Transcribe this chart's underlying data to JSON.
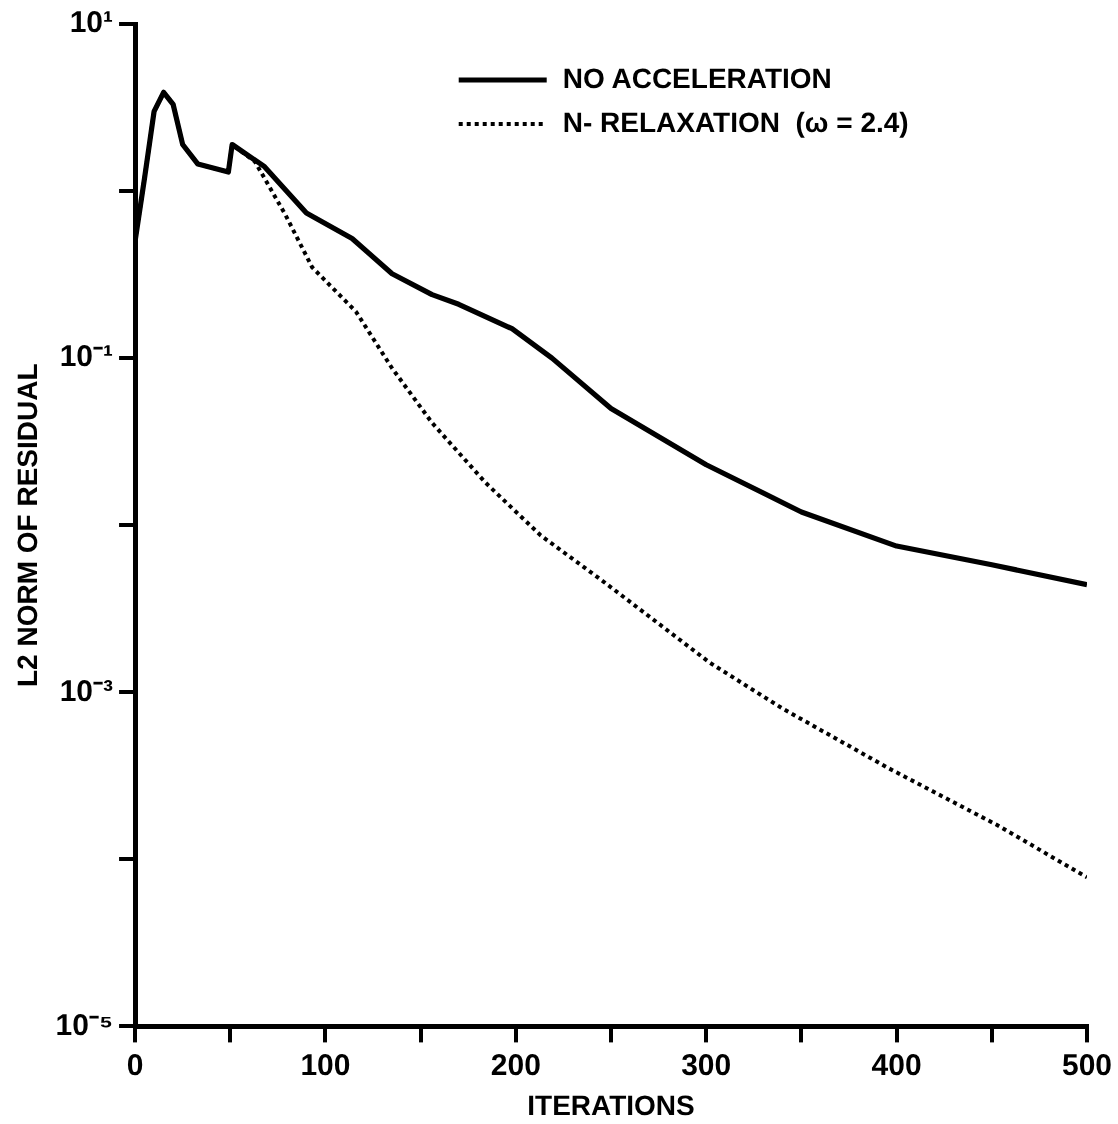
{
  "chart_data": {
    "type": "line",
    "xlabel": "ITERATIONS",
    "ylabel": "L2 NORM OF RESIDUAL",
    "log": "y",
    "grid": false,
    "legend": "top right",
    "marker": "none",
    "xlim": [
      0,
      500
    ],
    "xticks": [
      0,
      {
        "value": 50,
        "label": null
      },
      100,
      {
        "value": 150,
        "label": null
      },
      200,
      {
        "value": 250,
        "label": null
      },
      300,
      {
        "value": 350,
        "label": null
      },
      400,
      {
        "value": 450,
        "label": null
      },
      500
    ],
    "ylim": [
      1e-05,
      10
    ],
    "yticks": [
      {
        "value": 10,
        "label": "10¹"
      },
      {
        "value": 1,
        "label": null
      },
      {
        "value": 0.1,
        "label": "10⁻¹"
      },
      {
        "value": 0.01,
        "label": null
      },
      {
        "value": 0.001,
        "label": "10⁻³"
      },
      {
        "value": 0.0001,
        "label": null
      },
      {
        "value": 1e-05,
        "label": "10⁻⁵"
      }
    ],
    "series": [
      {
        "name": "NO ACCELERATION",
        "color": "#000000",
        "line_style": "solid",
        "x": [
          0,
          5,
          10,
          15,
          20,
          25,
          33,
          49,
          51,
          68,
          90,
          114,
          135,
          156,
          170,
          198,
          219,
          250,
          300,
          350,
          400,
          450,
          500
        ],
        "values": [
          0.5,
          1.2,
          3.0,
          3.9,
          3.3,
          1.9,
          1.45,
          1.3,
          1.9,
          1.4,
          0.74,
          0.52,
          0.32,
          0.24,
          0.21,
          0.15,
          0.1,
          0.05,
          0.023,
          0.012,
          0.0075,
          0.0058,
          0.0044
        ]
      },
      {
        "name": "N- RELAXATION  (ω = 2.4)",
        "color": "#000000",
        "line_style": "dotted",
        "x": [
          0,
          5,
          10,
          15,
          20,
          25,
          33,
          49,
          51,
          63,
          79,
          93,
          116,
          135,
          156,
          184,
          213,
          246,
          302,
          340,
          396,
          453,
          500
        ],
        "values": [
          0.5,
          1.2,
          3.0,
          3.9,
          3.3,
          1.9,
          1.45,
          1.3,
          1.9,
          1.5,
          0.72,
          0.35,
          0.19,
          0.087,
          0.041,
          0.018,
          0.0087,
          0.0046,
          0.0015,
          0.0008,
          0.00035,
          0.00016,
          7.8e-05
        ]
      }
    ]
  }
}
